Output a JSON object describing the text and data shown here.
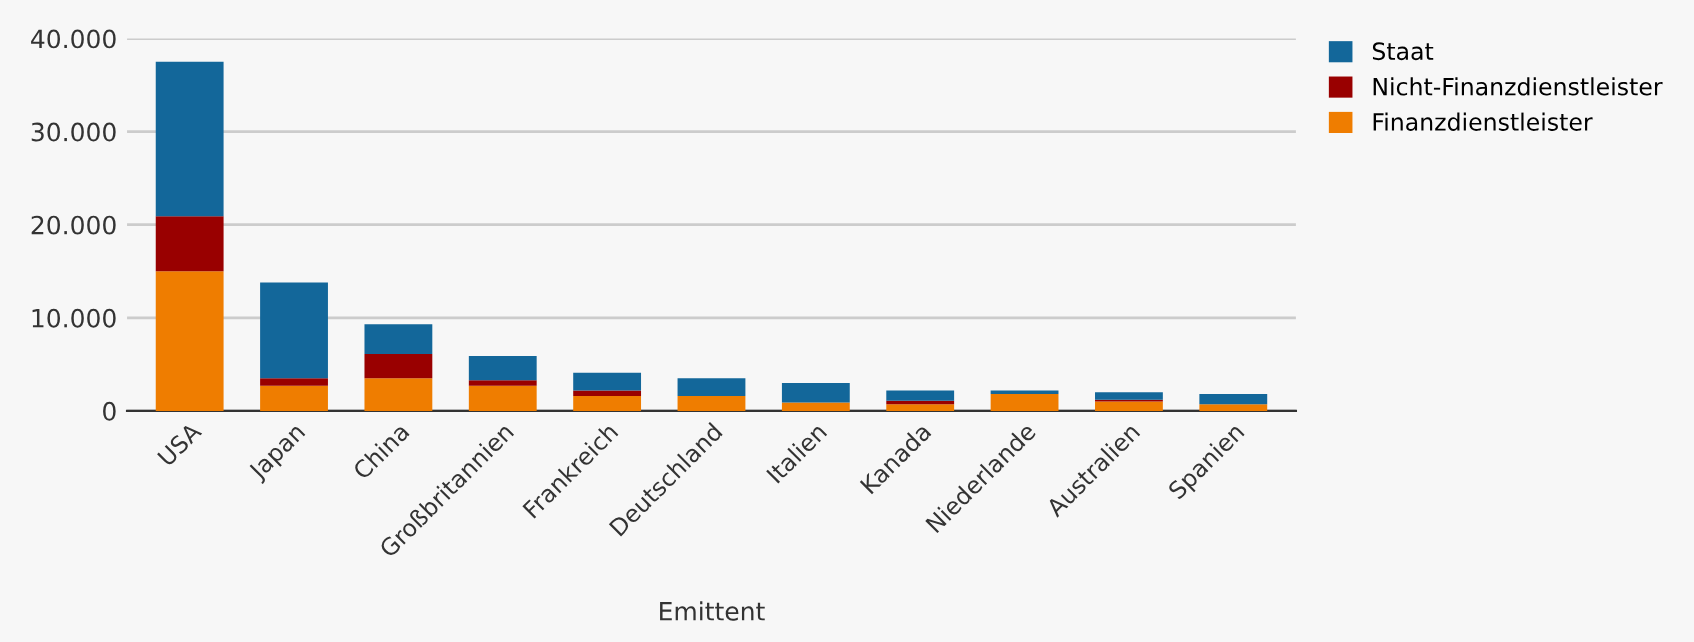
{
  "chart_data": {
    "type": "bar",
    "stacked": true,
    "xlabel": "Emittent",
    "categories": [
      "USA",
      "Japan",
      "China",
      "Großbritannien",
      "Frankreich",
      "Deutschland",
      "Italien",
      "Kanada",
      "Niederlande",
      "Australien",
      "Spanien"
    ],
    "series": [
      {
        "name": "Finanzdienstleister",
        "color": "#ef7d00",
        "values": [
          15000,
          2700,
          3500,
          2700,
          1600,
          1600,
          900,
          700,
          1800,
          1000,
          700
        ]
      },
      {
        "name": "Nicht-Finanzdienstleister",
        "color": "#990000",
        "values": [
          5900,
          800,
          2600,
          600,
          600,
          0,
          0,
          400,
          0,
          200,
          0
        ]
      },
      {
        "name": "Staat",
        "color": "#13679a",
        "values": [
          16600,
          10300,
          3200,
          2600,
          1900,
          1900,
          2100,
          1100,
          400,
          800,
          1100
        ]
      }
    ],
    "ylim": [
      0,
      40000
    ],
    "yticks": [
      {
        "value": 0,
        "label": "0"
      },
      {
        "value": 10000,
        "label": "10.000"
      },
      {
        "value": 20000,
        "label": "20.000"
      },
      {
        "value": 30000,
        "label": "30.000"
      },
      {
        "value": 40000,
        "label": "40.000"
      }
    ],
    "grid": "y",
    "legend": "right"
  }
}
